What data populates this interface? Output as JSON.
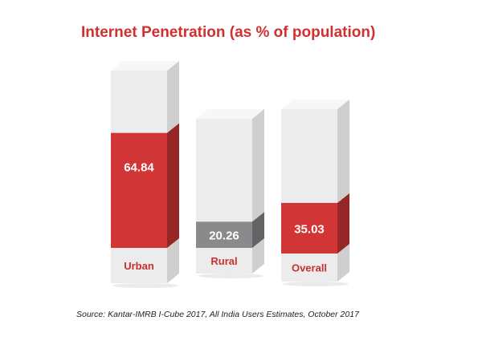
{
  "chart_data": {
    "type": "bar",
    "title": "Internet Penetration (as % of population)",
    "categories": [
      "Urban",
      "Rural",
      "Overall"
    ],
    "values": [
      64.84,
      20.26,
      35.03
    ],
    "value_labels": [
      "64.84",
      "20.26",
      "35.03"
    ],
    "ylim": [
      0,
      100
    ],
    "grid": false,
    "colors": {
      "Urban": "#d23535",
      "Rural": "#8a8a8c",
      "Overall": "#d23535",
      "empty_block": "#ececec",
      "title": "#d0302f"
    }
  },
  "source": "Source: Kantar-IMRB I-Cube 2017, All India Users Estimates, October 2017"
}
